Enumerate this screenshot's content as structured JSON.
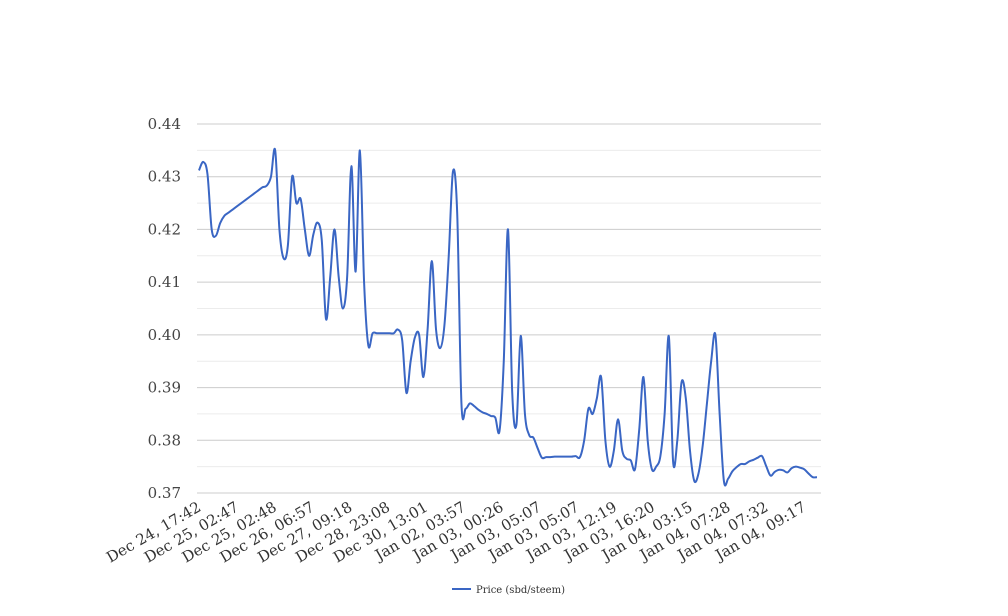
{
  "chart_data": {
    "type": "line",
    "title": "",
    "xlabel": "",
    "ylabel": "",
    "ylim": [
      0.37,
      0.44
    ],
    "y_ticks": [
      "0.37",
      "0.38",
      "0.39",
      "0.40",
      "0.41",
      "0.42",
      "0.43",
      "0.44"
    ],
    "x_tick_labels": [
      "Dec 24, 17:42",
      "Dec 25, 02:47",
      "Dec 25, 02:48",
      "Dec 26, 06:57",
      "Dec 27, 09:18",
      "Dec 28, 23:08",
      "Dec 30, 13:01",
      "Jan 02, 03:57",
      "Jan 03, 00:26",
      "Jan 03, 05:07",
      "Jan 03, 05:07",
      "Jan 03, 12:19",
      "Jan 03, 16:20",
      "Jan 04, 03:15",
      "Jan 04, 07:28",
      "Jan 04, 07:32",
      "Jan 04, 09:17"
    ],
    "grid": true,
    "minor_grid": true,
    "legend_position": "bottom",
    "series": [
      {
        "name": "Price (sbd/steem)",
        "color": "#3a66c4",
        "values": [
          0.4312,
          0.4328,
          0.4305,
          0.42,
          0.4188,
          0.4212,
          0.4226,
          0.4232,
          0.4238,
          0.4244,
          0.425,
          0.4256,
          0.4262,
          0.4268,
          0.4274,
          0.428,
          0.4283,
          0.43,
          0.435,
          0.42,
          0.4145,
          0.417,
          0.43,
          0.425,
          0.4258,
          0.42,
          0.415,
          0.419,
          0.4213,
          0.418,
          0.403,
          0.411,
          0.42,
          0.411,
          0.405,
          0.411,
          0.432,
          0.412,
          0.435,
          0.41,
          0.398,
          0.4003,
          0.4003,
          0.4003,
          0.4003,
          0.4003,
          0.4003,
          0.401,
          0.399,
          0.389,
          0.395,
          0.3995,
          0.4,
          0.392,
          0.401,
          0.414,
          0.401,
          0.3975,
          0.402,
          0.415,
          0.431,
          0.423,
          0.387,
          0.386,
          0.387,
          0.3865,
          0.3858,
          0.3853,
          0.385,
          0.3846,
          0.3843,
          0.3818,
          0.395,
          0.42,
          0.389,
          0.383,
          0.3998,
          0.385,
          0.381,
          0.3805,
          0.3785,
          0.3767,
          0.3768,
          0.3768,
          0.3769,
          0.3769,
          0.3769,
          0.3769,
          0.3769,
          0.377,
          0.3768,
          0.38,
          0.386,
          0.385,
          0.388,
          0.392,
          0.38,
          0.375,
          0.378,
          0.384,
          0.378,
          0.3765,
          0.3762,
          0.3745,
          0.382,
          0.392,
          0.38,
          0.3745,
          0.375,
          0.377,
          0.385,
          0.3997,
          0.376,
          0.38,
          0.391,
          0.388,
          0.378,
          0.3723,
          0.3737,
          0.379,
          0.387,
          0.395,
          0.4,
          0.385,
          0.3723,
          0.3727,
          0.3741,
          0.3749,
          0.3755,
          0.3755,
          0.376,
          0.3763,
          0.3767,
          0.377,
          0.3751,
          0.3733,
          0.374,
          0.3744,
          0.3743,
          0.3739,
          0.3747,
          0.375,
          0.3748,
          0.3745,
          0.3737,
          0.373,
          0.373
        ]
      }
    ]
  }
}
